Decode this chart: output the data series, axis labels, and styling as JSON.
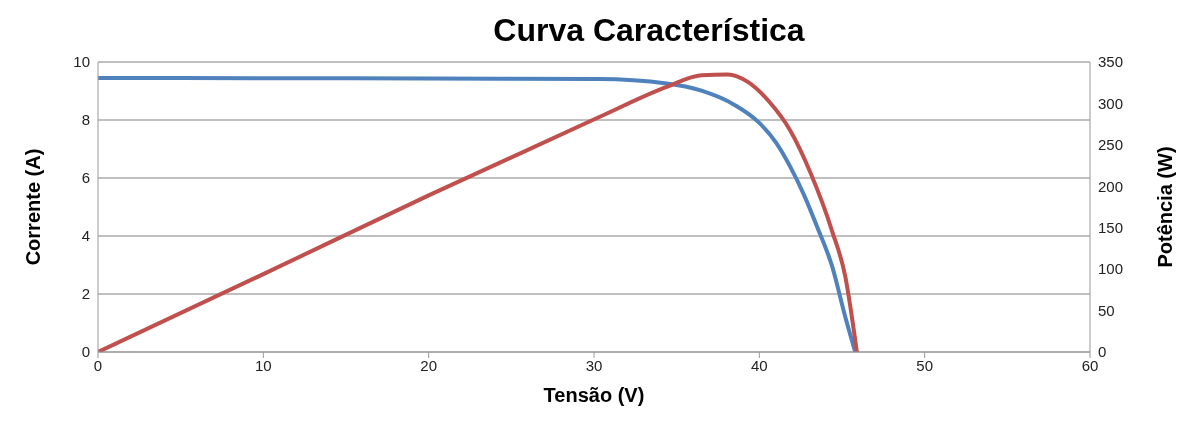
{
  "chart_data": {
    "type": "line",
    "title": "Curva Característica",
    "xlabel": "Tensão (V)",
    "ylabel": "Corrente (A)",
    "y2label": "Potência (W)",
    "xlim": [
      0,
      60
    ],
    "xticks": [
      0,
      10,
      20,
      30,
      40,
      50,
      60
    ],
    "ylim": [
      0,
      10
    ],
    "yticks": [
      0,
      2,
      4,
      6,
      8,
      10
    ],
    "y2lim": [
      0,
      350
    ],
    "y2ticks": [
      0,
      50,
      100,
      150,
      200,
      250,
      300,
      350
    ],
    "grid": "y",
    "marker": "none",
    "line_style": "solid",
    "series": [
      {
        "color": "#4f81bd",
        "x": [
          0,
          10,
          20,
          30.25,
          34.4,
          36.5,
          38.5,
          40,
          41,
          41.85,
          42.7,
          43.5,
          44.4,
          45.2,
          45.8
        ],
        "values": [
          9.45,
          9.44,
          9.43,
          9.41,
          9.26,
          9.01,
          8.52,
          7.9,
          7.23,
          6.41,
          5.42,
          4.31,
          2.96,
          1.21,
          0
        ]
      },
      {
        "color": "#c0504d",
        "axis": "y2",
        "x": [
          0,
          10,
          20,
          30.25,
          34.4,
          36.5,
          38.1,
          39.3,
          40.6,
          41.85,
          43.1,
          44.4,
          45.2,
          45.9
        ],
        "values": [
          0,
          94,
          189,
          283,
          320,
          334,
          335,
          326,
          302,
          268,
          216,
          146,
          91,
          0
        ]
      }
    ]
  }
}
